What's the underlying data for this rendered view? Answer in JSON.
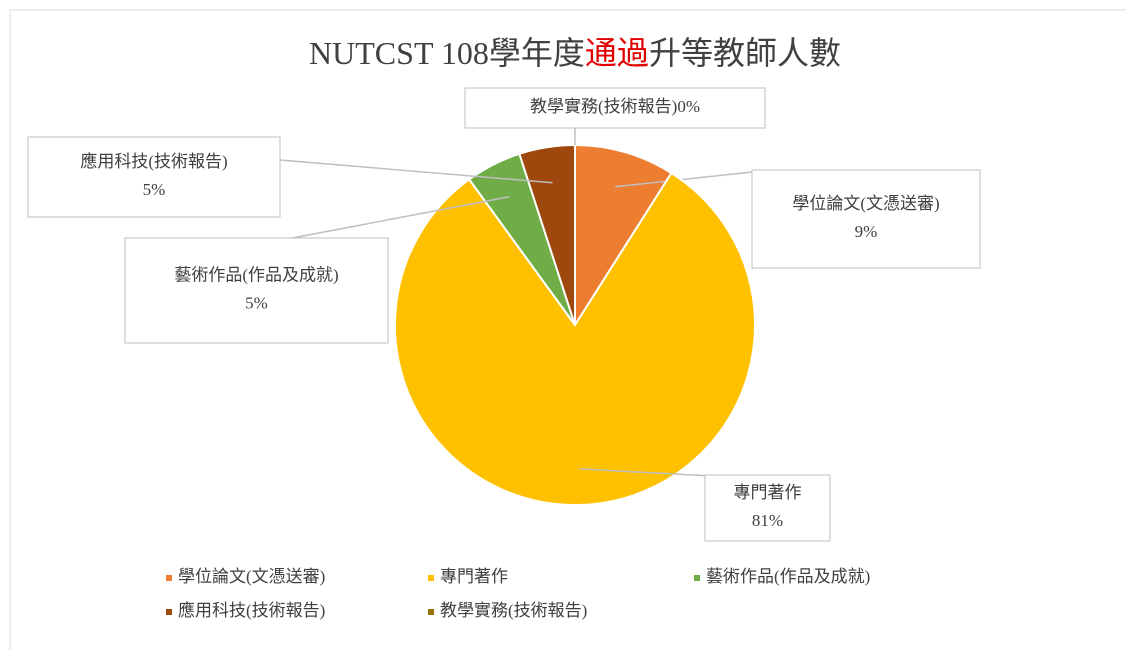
{
  "chart_data": {
    "type": "pie",
    "title": [
      {
        "text": "NUTCST 108學年度",
        "color": "#404040"
      },
      {
        "text": "通過",
        "color": "#e00000"
      },
      {
        "text": "升等教師人數",
        "color": "#404040"
      }
    ],
    "categories": [
      "學位論文(文憑送審)",
      "專門著作",
      "藝術作品(作品及成就)",
      "應用科技(技術報告)",
      "教學實務(技術報告)"
    ],
    "values": [
      9,
      81,
      5,
      5,
      0
    ],
    "value_labels": [
      "9%",
      "81%",
      "5%",
      "5%",
      "0%"
    ],
    "colors": [
      "#ed7d31",
      "#ffc000",
      "#70ad47",
      "#9e480e",
      "#997300"
    ],
    "legend": "bottom"
  }
}
